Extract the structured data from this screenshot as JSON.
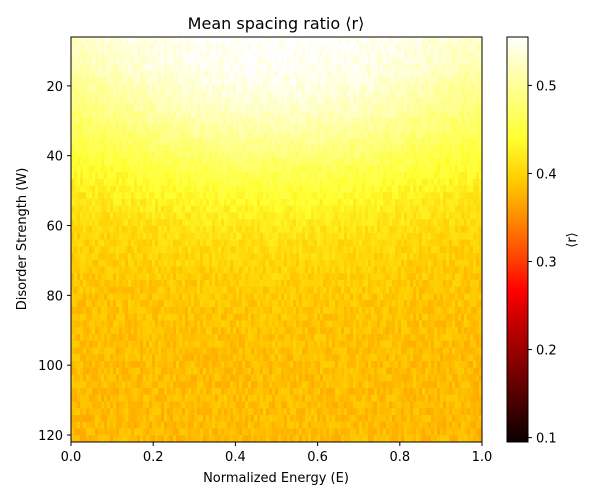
{
  "chart_data": {
    "type": "heatmap",
    "title": "Mean spacing ratio ⟨r⟩",
    "xlabel": "Normalized Energy (E)",
    "ylabel": "Disorder Strength (W)",
    "xlim": [
      0.0,
      1.0
    ],
    "ylim": [
      122,
      6
    ],
    "y_inverted": true,
    "x_ticks": [
      0.0,
      0.2,
      0.4,
      0.6,
      0.8,
      1.0
    ],
    "x_tick_labels": [
      "0.0",
      "0.2",
      "0.4",
      "0.6",
      "0.8",
      "1.0"
    ],
    "y_ticks": [
      20,
      40,
      60,
      80,
      100,
      120
    ],
    "y_tick_labels": [
      "20",
      "40",
      "60",
      "80",
      "100",
      "120"
    ],
    "colormap": "hot",
    "colorbar": {
      "label": "⟨r⟩",
      "range": [
        0.095,
        0.555
      ],
      "ticks": [
        0.1,
        0.2,
        0.3,
        0.4,
        0.5
      ],
      "tick_labels": [
        "0.1",
        "0.2",
        "0.3",
        "0.4",
        "0.5"
      ]
    },
    "rows_W": [
      6,
      10,
      14,
      18,
      22,
      26,
      30,
      34,
      38,
      42,
      46,
      50,
      54,
      58,
      62,
      66,
      70,
      74,
      78,
      82,
      86,
      90,
      94,
      98,
      102,
      106,
      110,
      114,
      118,
      122
    ],
    "columns_E": [
      0.0,
      0.1,
      0.2,
      0.3,
      0.4,
      0.5,
      0.6,
      0.7,
      0.8,
      0.9,
      1.0
    ],
    "mean_r_profile": [
      [
        0.525,
        0.535,
        0.545,
        0.55,
        0.552,
        0.553,
        0.552,
        0.55,
        0.545,
        0.535,
        0.525
      ],
      [
        0.52,
        0.532,
        0.542,
        0.548,
        0.551,
        0.552,
        0.551,
        0.548,
        0.542,
        0.532,
        0.52
      ],
      [
        0.51,
        0.525,
        0.537,
        0.545,
        0.549,
        0.55,
        0.549,
        0.545,
        0.537,
        0.525,
        0.51
      ],
      [
        0.5,
        0.515,
        0.53,
        0.54,
        0.545,
        0.547,
        0.545,
        0.54,
        0.53,
        0.515,
        0.5
      ],
      [
        0.49,
        0.505,
        0.52,
        0.532,
        0.538,
        0.54,
        0.538,
        0.532,
        0.52,
        0.505,
        0.49
      ],
      [
        0.48,
        0.495,
        0.51,
        0.522,
        0.528,
        0.53,
        0.528,
        0.522,
        0.51,
        0.495,
        0.48
      ],
      [
        0.47,
        0.482,
        0.497,
        0.51,
        0.516,
        0.518,
        0.516,
        0.51,
        0.497,
        0.482,
        0.47
      ],
      [
        0.46,
        0.47,
        0.483,
        0.495,
        0.502,
        0.504,
        0.502,
        0.495,
        0.483,
        0.47,
        0.46
      ],
      [
        0.45,
        0.458,
        0.47,
        0.48,
        0.487,
        0.49,
        0.487,
        0.48,
        0.47,
        0.458,
        0.45
      ],
      [
        0.44,
        0.447,
        0.457,
        0.466,
        0.472,
        0.474,
        0.472,
        0.466,
        0.457,
        0.447,
        0.44
      ],
      [
        0.43,
        0.437,
        0.445,
        0.452,
        0.457,
        0.459,
        0.457,
        0.452,
        0.445,
        0.437,
        0.43
      ],
      [
        0.42,
        0.427,
        0.434,
        0.44,
        0.444,
        0.446,
        0.444,
        0.44,
        0.434,
        0.427,
        0.42
      ],
      [
        0.413,
        0.418,
        0.424,
        0.43,
        0.433,
        0.435,
        0.433,
        0.43,
        0.424,
        0.418,
        0.413
      ],
      [
        0.406,
        0.41,
        0.415,
        0.42,
        0.423,
        0.424,
        0.423,
        0.42,
        0.415,
        0.41,
        0.406
      ],
      [
        0.4,
        0.403,
        0.408,
        0.412,
        0.414,
        0.415,
        0.414,
        0.412,
        0.408,
        0.403,
        0.4
      ],
      [
        0.395,
        0.398,
        0.402,
        0.405,
        0.407,
        0.408,
        0.407,
        0.405,
        0.402,
        0.398,
        0.395
      ],
      [
        0.392,
        0.394,
        0.397,
        0.4,
        0.402,
        0.402,
        0.402,
        0.4,
        0.397,
        0.394,
        0.392
      ],
      [
        0.389,
        0.391,
        0.393,
        0.396,
        0.397,
        0.398,
        0.397,
        0.396,
        0.393,
        0.391,
        0.389
      ],
      [
        0.387,
        0.388,
        0.39,
        0.392,
        0.393,
        0.394,
        0.393,
        0.392,
        0.39,
        0.388,
        0.387
      ],
      [
        0.385,
        0.386,
        0.388,
        0.389,
        0.39,
        0.391,
        0.39,
        0.389,
        0.388,
        0.386,
        0.385
      ],
      [
        0.384,
        0.385,
        0.386,
        0.387,
        0.388,
        0.388,
        0.388,
        0.387,
        0.386,
        0.385,
        0.384
      ],
      [
        0.383,
        0.384,
        0.385,
        0.386,
        0.386,
        0.386,
        0.386,
        0.386,
        0.385,
        0.384,
        0.383
      ],
      [
        0.382,
        0.383,
        0.384,
        0.384,
        0.385,
        0.385,
        0.385,
        0.384,
        0.384,
        0.383,
        0.382
      ],
      [
        0.382,
        0.382,
        0.383,
        0.383,
        0.384,
        0.384,
        0.384,
        0.383,
        0.383,
        0.382,
        0.382
      ],
      [
        0.381,
        0.382,
        0.382,
        0.383,
        0.383,
        0.383,
        0.383,
        0.383,
        0.382,
        0.382,
        0.381
      ],
      [
        0.381,
        0.381,
        0.382,
        0.382,
        0.382,
        0.383,
        0.382,
        0.382,
        0.382,
        0.381,
        0.381
      ],
      [
        0.38,
        0.381,
        0.381,
        0.382,
        0.382,
        0.382,
        0.382,
        0.382,
        0.381,
        0.381,
        0.38
      ],
      [
        0.38,
        0.38,
        0.381,
        0.381,
        0.382,
        0.382,
        0.382,
        0.381,
        0.381,
        0.38,
        0.38
      ],
      [
        0.379,
        0.38,
        0.38,
        0.381,
        0.381,
        0.381,
        0.381,
        0.381,
        0.38,
        0.38,
        0.379
      ],
      [
        0.379,
        0.379,
        0.38,
        0.38,
        0.381,
        0.381,
        0.381,
        0.38,
        0.38,
        0.379,
        0.379
      ]
    ],
    "fluctuation_amplitude": 0.012
  }
}
